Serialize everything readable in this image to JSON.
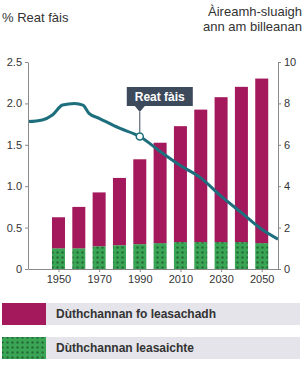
{
  "chart_data": {
    "type": "bar",
    "stacked": true,
    "legend": "bottom",
    "x": [
      1950,
      1960,
      1970,
      1980,
      1990,
      2000,
      2010,
      2020,
      2030,
      2040,
      2050
    ],
    "xlim": [
      1935,
      2058
    ],
    "xticks": [
      1950,
      1970,
      1990,
      2010,
      2030,
      2050
    ],
    "ylabel": "% Reat fàis",
    "ylim": [
      0,
      2.5
    ],
    "yticks": [
      0,
      0.5,
      {
        "value": 1,
        "label": "1.0"
      },
      1.5,
      {
        "value": 2,
        "label": "2.0"
      },
      2.5
    ],
    "y2label": [
      "Àireamh-sluaigh",
      "ann am billeanan"
    ],
    "y2lim": [
      0,
      10
    ],
    "y2ticks": [
      0,
      2,
      4,
      6,
      8,
      10
    ],
    "series": [
      {
        "name": "Dùthchannan leasaichte",
        "color": "#3aa655",
        "type": "bar",
        "axis": "y2",
        "values": [
          1.0,
          1.0,
          1.1,
          1.15,
          1.2,
          1.25,
          1.3,
          1.3,
          1.3,
          1.3,
          1.25
        ]
      },
      {
        "name": "Dùthchannan fo leasachadh",
        "color": "#a3195b",
        "type": "bar",
        "axis": "y2",
        "values": [
          1.5,
          2.0,
          2.6,
          3.25,
          4.1,
          4.85,
          5.6,
          6.4,
          7.0,
          7.5,
          7.95
        ]
      },
      {
        "color": "#1d6f7d",
        "type": "line",
        "x": [
          1935,
          1942,
          1947,
          1952,
          1958,
          1962,
          1965,
          1970,
          1980,
          1990,
          2000,
          2010,
          2020,
          2030,
          2040,
          2050,
          2058
        ],
        "values": [
          1.78,
          1.8,
          1.86,
          1.98,
          2.0,
          1.98,
          1.88,
          1.82,
          1.7,
          1.6,
          1.42,
          1.25,
          1.1,
          0.88,
          0.68,
          0.48,
          0.36
        ]
      }
    ],
    "annotations": [
      {
        "text": "Reat fàis",
        "x": 1990,
        "y": 1.6
      }
    ]
  }
}
